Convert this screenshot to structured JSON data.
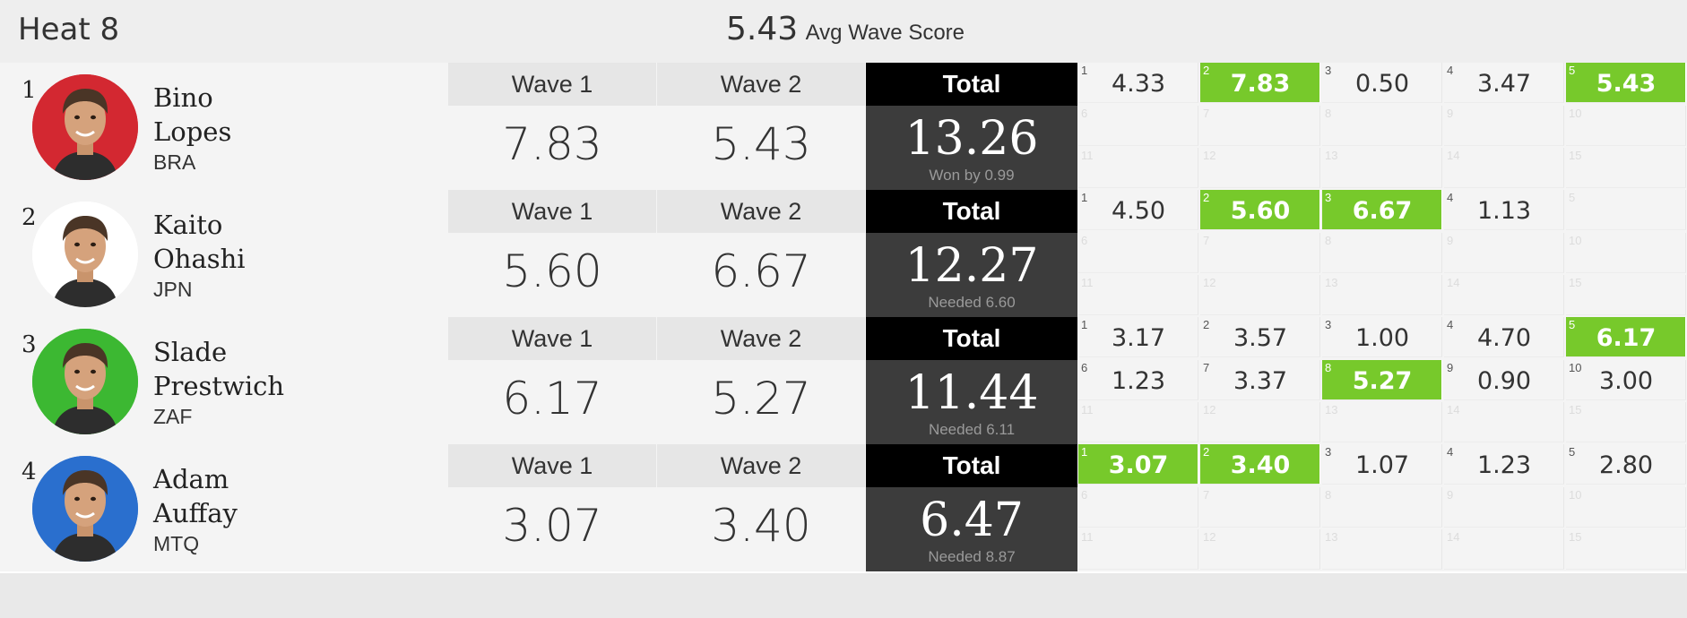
{
  "heat": {
    "title": "Heat 8",
    "avg_value": "5.43",
    "avg_label": "Avg Wave Score"
  },
  "labels": {
    "wave1": "Wave 1",
    "wave2": "Wave 2",
    "total": "Total"
  },
  "colors": {
    "highlight": "#77c92b",
    "total_bg": "#3c3c3c",
    "total_head": "#000000"
  },
  "surfers": [
    {
      "rank": "1",
      "first": "Bino",
      "last": "Lopes",
      "country": "BRA",
      "avatar_bg": "#d32831",
      "avatar_icon": "surfer-portrait",
      "wave1": "7.83",
      "wave2": "5.43",
      "total": "13.26",
      "note": "Won by 0.99",
      "waves": [
        {
          "n": "1",
          "v": "4.33",
          "hl": false
        },
        {
          "n": "2",
          "v": "7.83",
          "hl": true
        },
        {
          "n": "3",
          "v": "0.50",
          "hl": false
        },
        {
          "n": "4",
          "v": "3.47",
          "hl": false
        },
        {
          "n": "5",
          "v": "5.43",
          "hl": true
        }
      ]
    },
    {
      "rank": "2",
      "first": "Kaito",
      "last": "Ohashi",
      "country": "JPN",
      "avatar_bg": "#ffffff",
      "avatar_icon": "surfer-portrait",
      "wave1": "5.60",
      "wave2": "6.67",
      "total": "12.27",
      "note": "Needed 6.60",
      "waves": [
        {
          "n": "1",
          "v": "4.50",
          "hl": false
        },
        {
          "n": "2",
          "v": "5.60",
          "hl": true
        },
        {
          "n": "3",
          "v": "6.67",
          "hl": true
        },
        {
          "n": "4",
          "v": "1.13",
          "hl": false
        }
      ]
    },
    {
      "rank": "3",
      "first": "Slade",
      "last": "Prestwich",
      "country": "ZAF",
      "avatar_bg": "#3cb832",
      "avatar_icon": "surfer-portrait",
      "wave1": "6.17",
      "wave2": "5.27",
      "total": "11.44",
      "note": "Needed 6.11",
      "waves": [
        {
          "n": "1",
          "v": "3.17",
          "hl": false
        },
        {
          "n": "2",
          "v": "3.57",
          "hl": false
        },
        {
          "n": "3",
          "v": "1.00",
          "hl": false
        },
        {
          "n": "4",
          "v": "4.70",
          "hl": false
        },
        {
          "n": "5",
          "v": "6.17",
          "hl": true
        },
        {
          "n": "6",
          "v": "1.23",
          "hl": false
        },
        {
          "n": "7",
          "v": "3.37",
          "hl": false
        },
        {
          "n": "8",
          "v": "5.27",
          "hl": true
        },
        {
          "n": "9",
          "v": "0.90",
          "hl": false
        },
        {
          "n": "10",
          "v": "3.00",
          "hl": false
        }
      ]
    },
    {
      "rank": "4",
      "first": "Adam",
      "last": "Auffay",
      "country": "MTQ",
      "avatar_bg": "#2a6fce",
      "avatar_icon": "surfer-portrait",
      "wave1": "3.07",
      "wave2": "3.40",
      "total": "6.47",
      "note": "Needed 8.87",
      "waves": [
        {
          "n": "1",
          "v": "3.07",
          "hl": true
        },
        {
          "n": "2",
          "v": "3.40",
          "hl": true
        },
        {
          "n": "3",
          "v": "1.07",
          "hl": false
        },
        {
          "n": "4",
          "v": "1.23",
          "hl": false
        },
        {
          "n": "5",
          "v": "2.80",
          "hl": false
        }
      ]
    }
  ]
}
